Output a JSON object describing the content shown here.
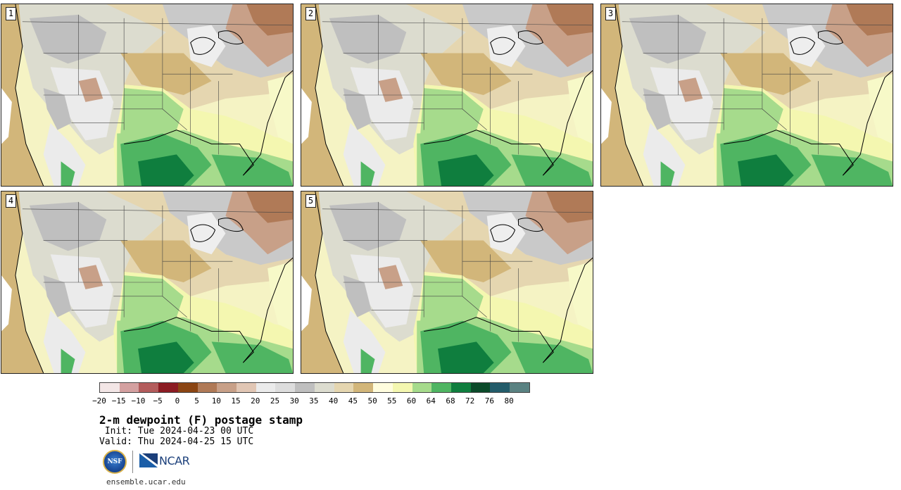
{
  "panels": [
    {
      "label": "1"
    },
    {
      "label": "2"
    },
    {
      "label": "3"
    },
    {
      "label": "4"
    },
    {
      "label": "5"
    }
  ],
  "colorbar": {
    "colors": [
      "#f3e6e6",
      "#d4a0a0",
      "#b35c5c",
      "#8c1c23",
      "#8b4513",
      "#b07a57",
      "#c8a088",
      "#e1c6b4",
      "#ebebeb",
      "#dddddd",
      "#bfbfbf",
      "#dcdccf",
      "#e5d6b0",
      "#d2b67a",
      "#fffdde",
      "#f4f7b0",
      "#a6db8c",
      "#4fb562",
      "#0f7e3e",
      "#0b4a2a",
      "#235c6a",
      "#5a8282"
    ],
    "tick_labels": [
      "−20",
      "−15",
      "−10",
      "−5",
      "0",
      "5",
      "10",
      "15",
      "20",
      "25",
      "30",
      "35",
      "40",
      "45",
      "50",
      "55",
      "60",
      "64",
      "68",
      "72",
      "76",
      "80"
    ]
  },
  "title": "2-m dewpoint (F) postage stamp",
  "init": " Init: Tue 2024-04-23 00 UTC",
  "valid": "Valid: Thu 2024-04-25 15 UTC",
  "logos": {
    "nsf_text": "NSF",
    "ncar_text": "NCAR"
  },
  "footer_url": "ensemble.ucar.edu"
}
